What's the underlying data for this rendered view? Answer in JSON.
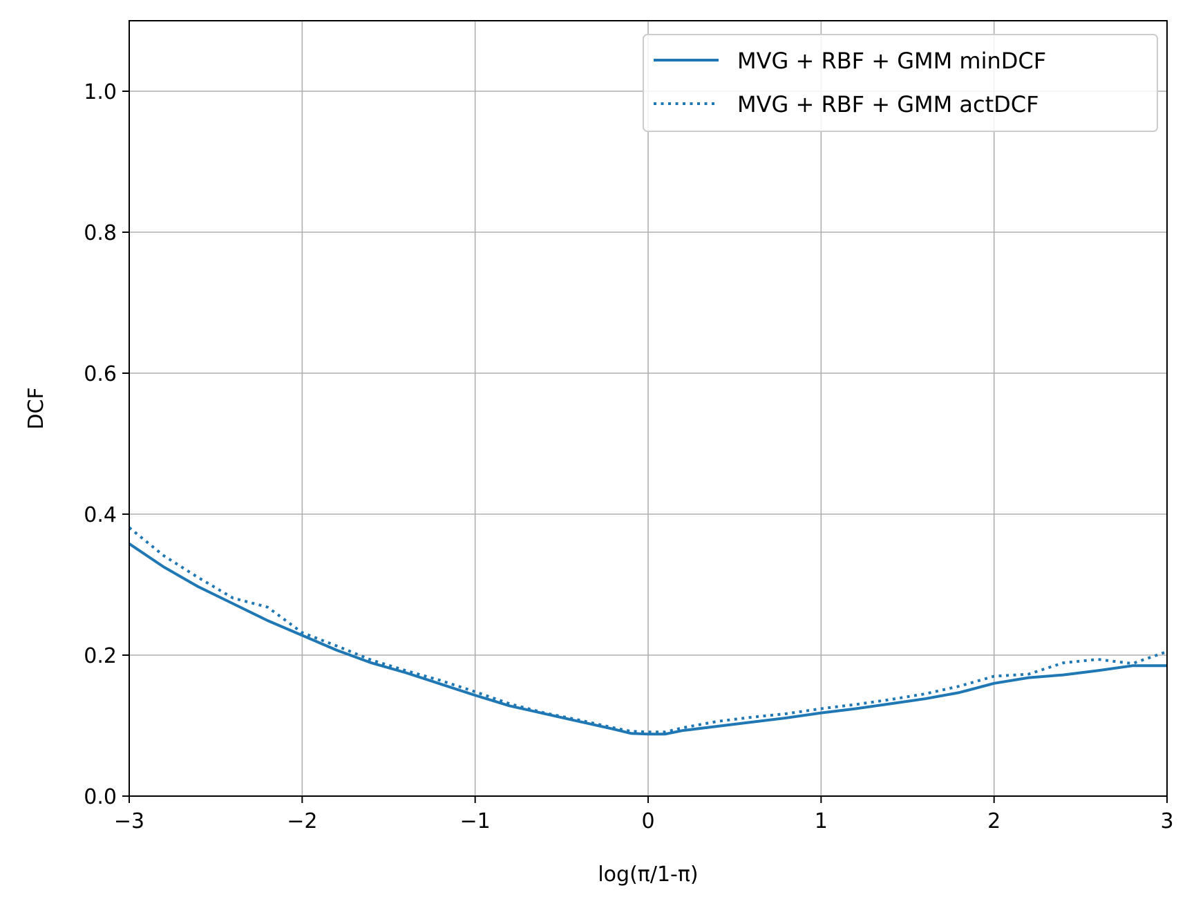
{
  "chart_data": {
    "type": "line",
    "title": "",
    "xlabel": "log(π/1-π)",
    "ylabel": "DCF",
    "xlim": [
      -3,
      3
    ],
    "ylim": [
      0,
      1.1
    ],
    "grid": true,
    "legend_position": "top-right",
    "x_ticks": [
      -3,
      -2,
      -1,
      0,
      1,
      2,
      3
    ],
    "x_tick_labels": [
      "−3",
      "−2",
      "−1",
      "0",
      "1",
      "2",
      "3"
    ],
    "y_ticks": [
      0.0,
      0.2,
      0.4,
      0.6,
      0.8,
      1.0
    ],
    "y_tick_labels": [
      "0.0",
      "0.2",
      "0.4",
      "0.6",
      "0.8",
      "1.0"
    ],
    "x": [
      -3.0,
      -2.8,
      -2.6,
      -2.4,
      -2.2,
      -2.0,
      -1.8,
      -1.6,
      -1.4,
      -1.2,
      -1.0,
      -0.8,
      -0.6,
      -0.4,
      -0.2,
      -0.1,
      0.0,
      0.1,
      0.2,
      0.4,
      0.6,
      0.8,
      1.0,
      1.2,
      1.4,
      1.6,
      1.8,
      2.0,
      2.2,
      2.4,
      2.6,
      2.8,
      3.0
    ],
    "series": [
      {
        "name": "MVG + RBF + GMM minDCF",
        "style": "solid",
        "color": "#1f77b4",
        "values": [
          0.358,
          0.325,
          0.297,
          0.273,
          0.249,
          0.228,
          0.207,
          0.189,
          0.175,
          0.159,
          0.143,
          0.128,
          0.117,
          0.106,
          0.095,
          0.089,
          0.088,
          0.088,
          0.093,
          0.099,
          0.105,
          0.111,
          0.118,
          0.124,
          0.131,
          0.138,
          0.147,
          0.16,
          0.168,
          0.172,
          0.178,
          0.185,
          0.185
        ]
      },
      {
        "name": "MVG + RBF + GMM actDCF",
        "style": "dotted",
        "color": "#1f77b4",
        "values": [
          0.381,
          0.341,
          0.31,
          0.281,
          0.268,
          0.232,
          0.213,
          0.193,
          0.178,
          0.164,
          0.148,
          0.131,
          0.118,
          0.108,
          0.097,
          0.092,
          0.091,
          0.091,
          0.097,
          0.106,
          0.112,
          0.117,
          0.124,
          0.13,
          0.137,
          0.145,
          0.156,
          0.17,
          0.173,
          0.189,
          0.194,
          0.188,
          0.205
        ]
      }
    ]
  }
}
